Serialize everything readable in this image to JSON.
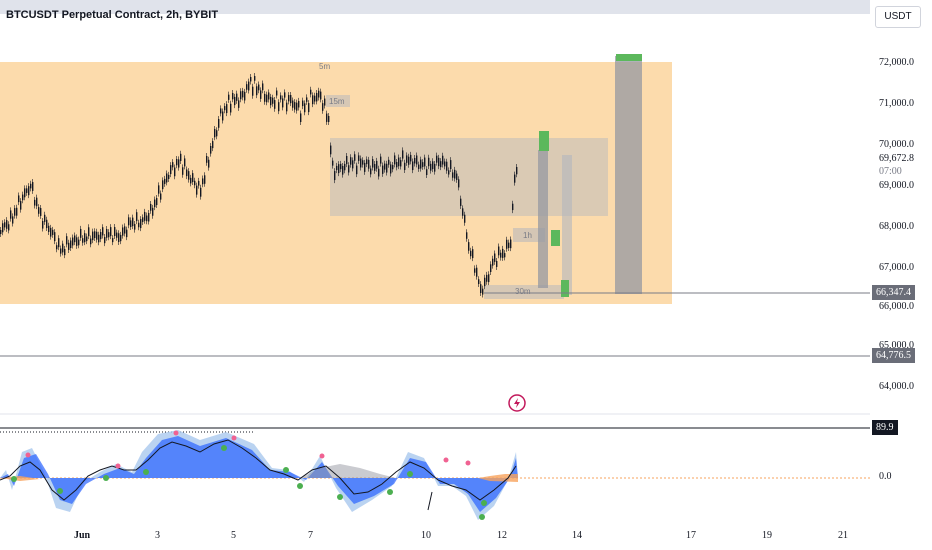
{
  "header": {
    "title": "BTCUSDT Perpetual Contract, 2h, BYBIT",
    "currency": "USDT"
  },
  "price_axis": {
    "labels": [
      "72,000.0",
      "71,000.0",
      "70,000.0",
      "69,672.8",
      "07:00",
      "69,000.0",
      "68,000.0",
      "67,000.0",
      "66,000.0",
      "65,000.0",
      "64,000.0",
      "0.0"
    ],
    "last_price": "69,672.8",
    "countdown": "07:00",
    "tag_support": "66,347.4",
    "tag_line": "64,776.5",
    "tag_osc": "89.9"
  },
  "date_axis": [
    "Jun",
    "3",
    "5",
    "7",
    "10",
    "12",
    "14",
    "17",
    "19",
    "21"
  ],
  "annotations": {
    "label_5m": "5m",
    "label_15m": "15m",
    "label_1h": "1h",
    "label_30m": "30m"
  },
  "colors": {
    "zone": "#fcd59d",
    "gray_box": "#b2b5be",
    "green": "#5cb85c",
    "osc_blue": "#2962ff",
    "tag_dark": "#131722",
    "tag_gray": "#6a6d78"
  },
  "icons": {
    "flash": "lightning-icon"
  }
}
